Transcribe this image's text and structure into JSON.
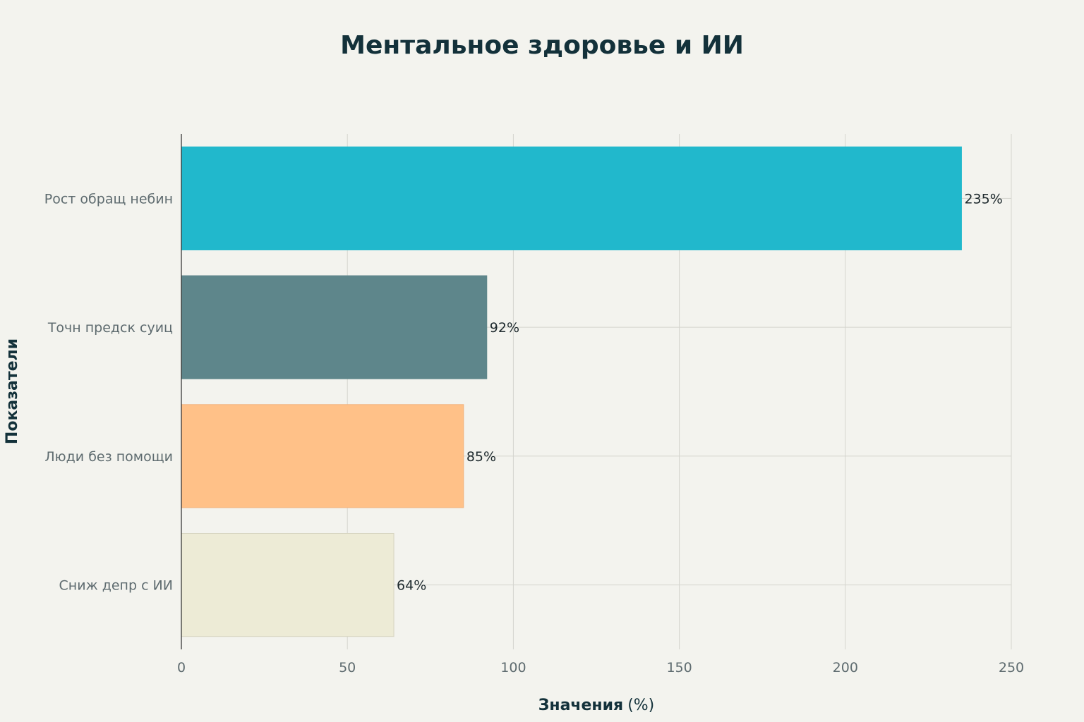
{
  "chart_data": {
    "type": "bar",
    "orientation": "horizontal",
    "title": "Ментальное здоровье и ИИ",
    "xlabel_bold": "Значения",
    "xlabel_unit": "(%)",
    "ylabel": "Показатели",
    "xlim": [
      0,
      250
    ],
    "xticks": [
      0,
      50,
      100,
      150,
      200,
      250
    ],
    "grid": true,
    "legend": "none",
    "categories": [
      "Рост обращ небин",
      "Точн предск суиц",
      "Люди без помощи",
      "Сниж депр с ИИ"
    ],
    "values": [
      235,
      92,
      85,
      64
    ],
    "value_labels": [
      "235%",
      "92%",
      "85%",
      "64%"
    ],
    "colors": [
      "#21B8CC",
      "#5E868B",
      "#FFC188",
      "#EDEBD6"
    ]
  }
}
